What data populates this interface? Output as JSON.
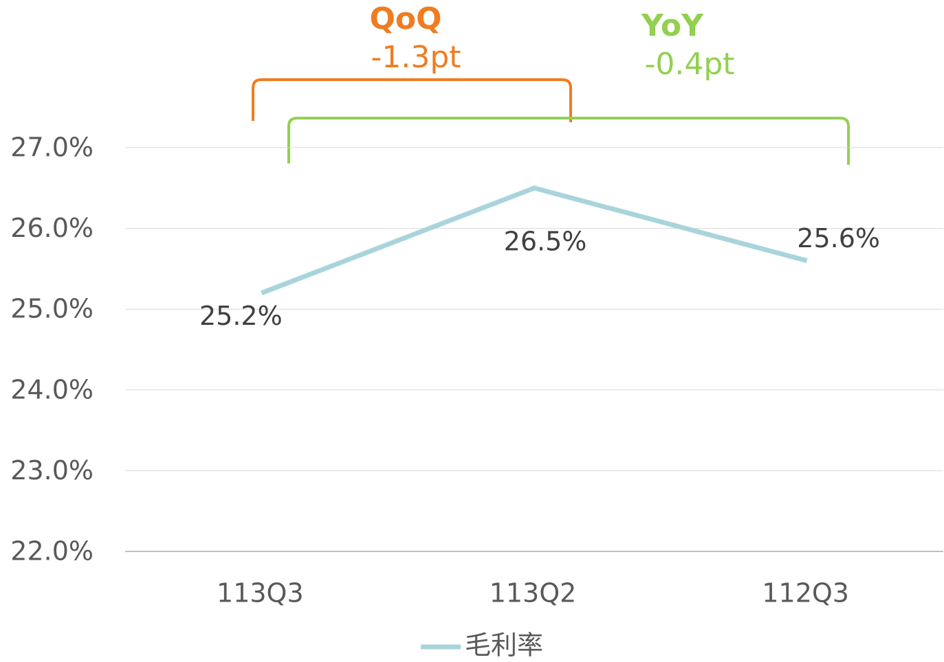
{
  "chart_data": {
    "type": "line",
    "categories": [
      "113Q3",
      "113Q2",
      "112Q3"
    ],
    "series": [
      {
        "name": "毛利率",
        "color": "#a9d4dc",
        "values": [
          25.2,
          26.5,
          25.6
        ],
        "value_labels": [
          "25.2%",
          "26.5%",
          "25.6%"
        ]
      }
    ],
    "ylim": [
      22,
      27
    ],
    "yticks": [
      {
        "value": 22,
        "label": "22.0%"
      },
      {
        "value": 23,
        "label": "23.0%"
      },
      {
        "value": 24,
        "label": "24.0%"
      },
      {
        "value": 25,
        "label": "25.0%"
      },
      {
        "value": 26,
        "label": "26.0%"
      },
      {
        "value": 27,
        "label": "27.0%"
      }
    ],
    "grid": true,
    "legend": "bottom",
    "annotations": [
      {
        "title": "QoQ",
        "text": "-1.3pt",
        "color": "#f07c22"
      },
      {
        "title": "YoY",
        "text": "-0.4pt",
        "color": "#92d050"
      }
    ]
  }
}
